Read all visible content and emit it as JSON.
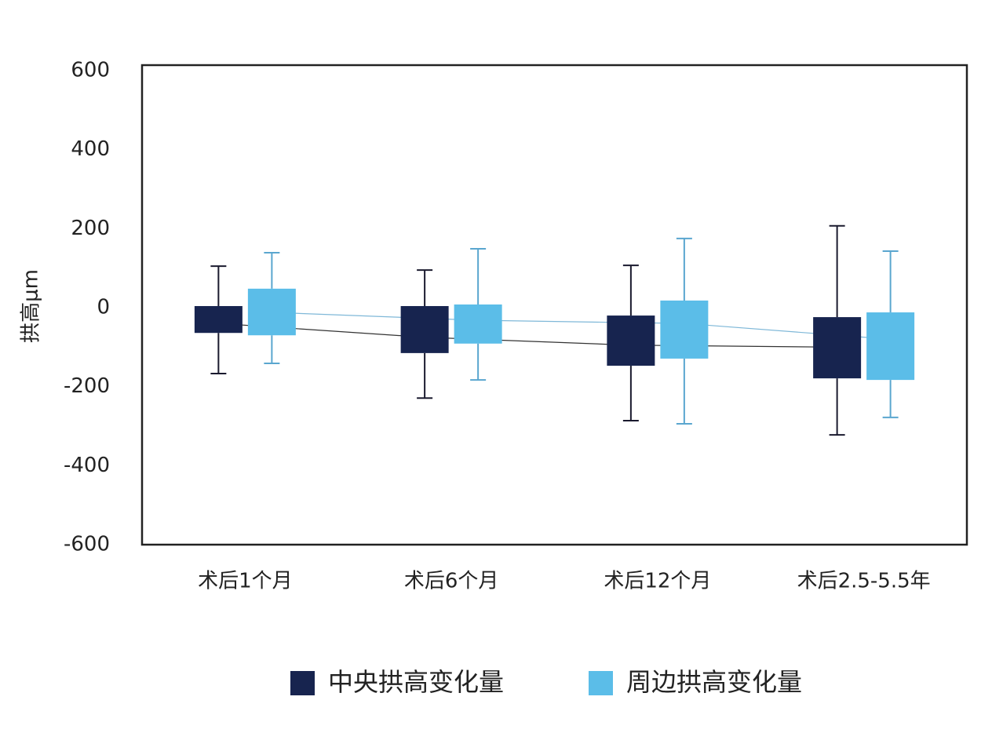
{
  "chart_data": {
    "type": "box",
    "y_label": "拱高μm",
    "categories": [
      "术后1个月",
      "术后6个月",
      "术后12个月",
      "术后2.5-5.5年"
    ],
    "series": [
      {
        "name": "中央拱高变化量",
        "color": "#17244f",
        "min": [
          -167,
          -229,
          -286,
          -322
        ],
        "q1": [
          -64,
          -115,
          -147,
          -179
        ],
        "q3": [
          4,
          4,
          -20,
          -24
        ],
        "max": [
          105,
          95,
          107,
          207
        ],
        "mean": [
          -40,
          -75,
          -95,
          -100
        ]
      },
      {
        "name": "周边拱高变化量",
        "color": "#5bbde8",
        "min": [
          -141,
          -183,
          -294,
          -278
        ],
        "q1": [
          -70,
          -91,
          -129,
          -183
        ],
        "q3": [
          48,
          8,
          18,
          -12
        ],
        "max": [
          139,
          149,
          175,
          143
        ],
        "mean": [
          -12,
          -32,
          -40,
          -80
        ]
      }
    ],
    "ylim": [
      -600,
      600
    ],
    "yticks": [
      -600,
      -400,
      -200,
      0,
      200,
      400,
      600
    ],
    "grid": false
  }
}
